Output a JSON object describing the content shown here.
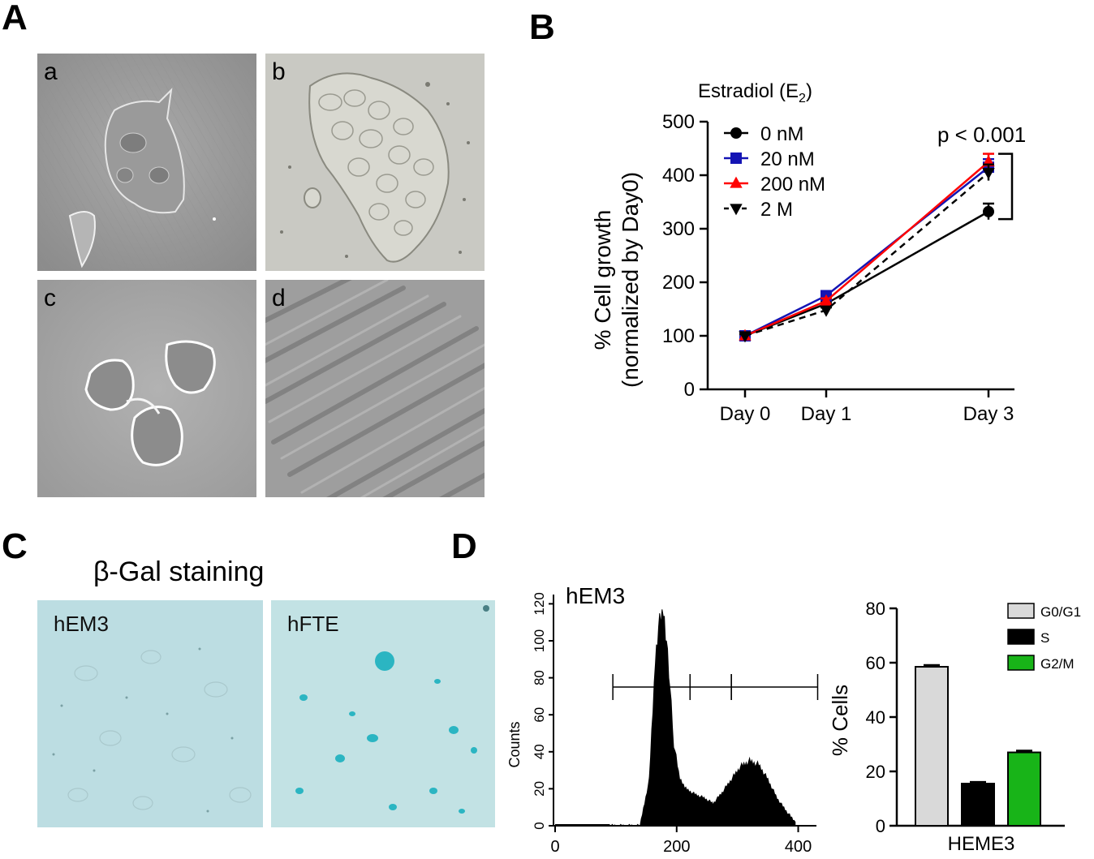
{
  "panels": {
    "A": {
      "letter": "A",
      "subpanels": [
        {
          "label": "a"
        },
        {
          "label": "b"
        },
        {
          "label": "c"
        },
        {
          "label": "d"
        }
      ]
    },
    "B": {
      "letter": "B",
      "legend_title_main": "Estradiol (E",
      "legend_title_sub": "2",
      "legend_title_end": ")",
      "annotation": "p < 0.001"
    },
    "C": {
      "letter": "C",
      "title": "β-Gal staining",
      "images": [
        {
          "label": "hEM3"
        },
        {
          "label": "hFTE"
        }
      ]
    },
    "D": {
      "letter": "D",
      "hist_title": "hEM3",
      "hist_ylabel": "Counts"
    }
  },
  "colors": {
    "series_0nM": "#000000",
    "series_20nM": "#1414b4",
    "series_200nM": "#ff0000",
    "series_2M": "#000000",
    "bar_g0g1": "#d9d9d9",
    "bar_s": "#000000",
    "bar_g2m": "#18b418",
    "stain_bg": "#b9dde3",
    "stain_blue": "#2ab7c4"
  },
  "chart_data": [
    {
      "type": "line",
      "xlabel": "",
      "ylabel": "% Cell growth",
      "ylabel2": "(normalized by Day0)",
      "ylim": [
        0,
        500
      ],
      "yticks": [
        "0",
        "100",
        "200",
        "300",
        "400",
        "500"
      ],
      "categories": [
        "Day 0",
        "Day 1",
        "Day 3"
      ],
      "x": [
        0,
        1,
        3
      ],
      "legend_position": "top-left",
      "series": [
        {
          "name": "0 nM",
          "values": [
            100,
            160,
            332
          ],
          "err": [
            3,
            5,
            15
          ],
          "marker": "circle",
          "color": "#000000",
          "dash": false
        },
        {
          "name": "20 nM",
          "values": [
            100,
            175,
            415
          ],
          "err": [
            3,
            5,
            15
          ],
          "marker": "square",
          "color": "#1414b4",
          "dash": false
        },
        {
          "name": "200 nM",
          "values": [
            100,
            165,
            425
          ],
          "err": [
            3,
            5,
            15
          ],
          "marker": "triangle-up",
          "color": "#ff0000",
          "dash": false
        },
        {
          "name": "2 M",
          "values": [
            100,
            148,
            405
          ],
          "err": [
            3,
            5,
            15
          ],
          "marker": "triangle-down",
          "color": "#000000",
          "dash": true
        }
      ]
    },
    {
      "type": "area",
      "title": "hEM3",
      "ylabel": "Counts",
      "xlim": [
        0,
        430
      ],
      "ylim": [
        0,
        125
      ],
      "xticks": [
        "0",
        "200",
        "400"
      ],
      "yticks": [
        "0",
        "20",
        "40",
        "60",
        "80",
        "100",
        "120"
      ],
      "x": [
        90,
        140,
        155,
        165,
        172,
        178,
        185,
        195,
        205,
        215,
        230,
        245,
        260,
        275,
        290,
        305,
        320,
        335,
        350,
        365,
        380,
        395
      ],
      "values": [
        0,
        0,
        25,
        90,
        112,
        118,
        95,
        45,
        25,
        20,
        17,
        15,
        12,
        18,
        25,
        32,
        35,
        33,
        25,
        15,
        8,
        2
      ],
      "gates": [
        [
          95,
          222
        ],
        [
          222,
          290
        ],
        [
          290,
          432
        ]
      ],
      "gate_y": 75
    },
    {
      "type": "bar",
      "ylabel": "% Cells",
      "ylim": [
        0,
        80
      ],
      "yticks": [
        "0",
        "20",
        "40",
        "60",
        "80"
      ],
      "categories": [
        "HEME3"
      ],
      "legend_position": "top-right",
      "series": [
        {
          "name": "G0/G1",
          "values": [
            58.5
          ],
          "color": "#d9d9d9"
        },
        {
          "name": "S",
          "values": [
            15.5
          ],
          "color": "#000000"
        },
        {
          "name": "G2/M",
          "values": [
            27.0
          ],
          "color": "#18b418"
        }
      ]
    }
  ]
}
